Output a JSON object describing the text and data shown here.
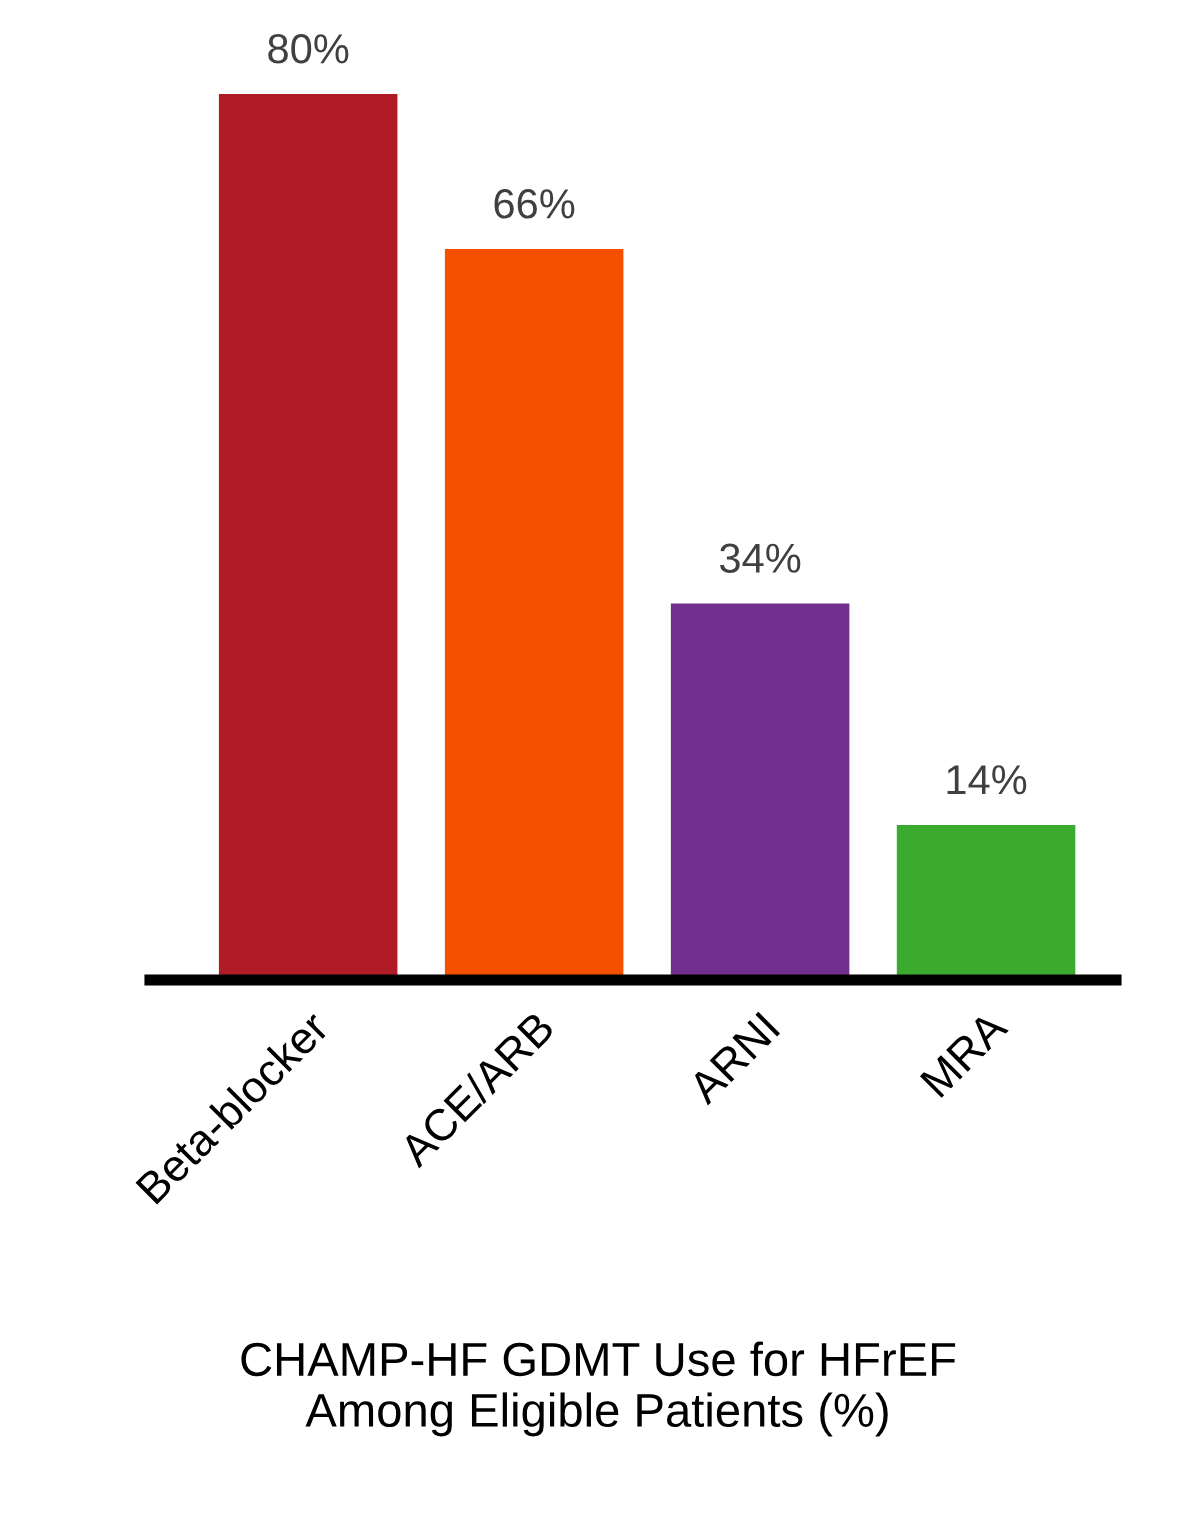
{
  "chart_data": {
    "type": "bar",
    "xlabel": "CHAMP-HF GDMT Use for HFrEF\nAmong Eligible Patients (%)",
    "categories": [
      "Beta-blocker",
      "ACE/ARB",
      "ARNI",
      "MRA"
    ],
    "values": [
      80,
      66,
      34,
      14
    ],
    "colors": [
      "#b01c25",
      "#f55000",
      "#722e8c",
      "#3aab2e"
    ],
    "value_labels": [
      "80%",
      "66%",
      "34%",
      "14%"
    ],
    "grid": false,
    "legend": false
  }
}
